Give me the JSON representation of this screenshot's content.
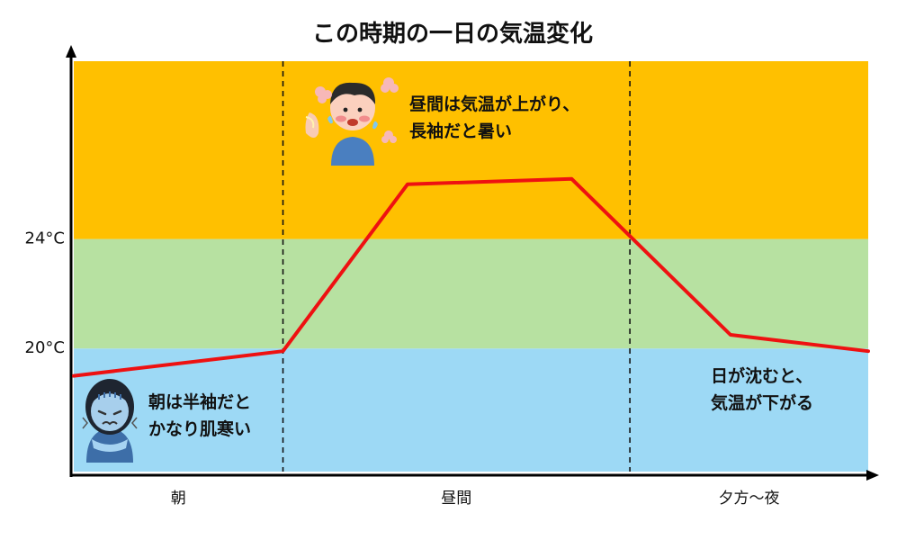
{
  "chart_data": {
    "type": "line",
    "title": "この時期の一日の気温変化",
    "xlabel": "",
    "ylabel": "",
    "x_ticks": [
      "朝",
      "昼間",
      "夕方〜夜"
    ],
    "y_ticks": [
      {
        "value": 20,
        "label": "20°C"
      },
      {
        "value": 24,
        "label": "24°C"
      }
    ],
    "ylim": [
      15.5,
      30.5
    ],
    "xlim": [
      0,
      3
    ],
    "bands": [
      {
        "from": 15.5,
        "to": 20,
        "color": "#9DD9F5"
      },
      {
        "from": 20,
        "to": 24,
        "color": "#B7E1A1"
      },
      {
        "from": 24,
        "to": 30.5,
        "color": "#FFC000"
      }
    ],
    "dividers": [
      0.79,
      2.1
    ],
    "series": [
      {
        "color": "#EE1111",
        "x": [
          0,
          0.79,
          1.26,
          1.88,
          2.48,
          3.0
        ],
        "y": [
          19.0,
          19.9,
          26.0,
          26.2,
          20.5,
          19.9
        ]
      }
    ],
    "annotations": [
      {
        "id": "morning",
        "lines": [
          "朝は半袖だと",
          "かなり肌寒い"
        ],
        "icon": "shivering-person-icon"
      },
      {
        "id": "daytime",
        "lines": [
          "昼間は気温が上がり、",
          "長袖だと暑い"
        ],
        "icon": "sweating-person-icon"
      },
      {
        "id": "evening",
        "lines": [
          "日が沈むと、",
          "気温が下がる"
        ]
      }
    ],
    "grid": false,
    "legend": "none"
  }
}
